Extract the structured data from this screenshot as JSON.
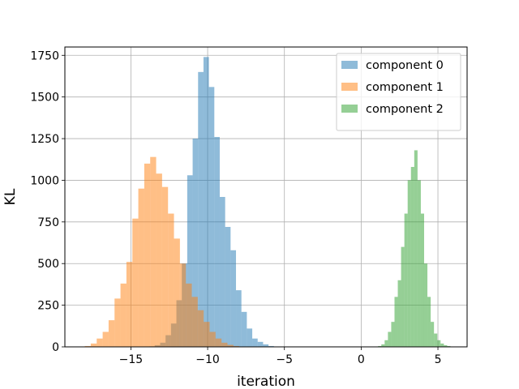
{
  "chart_data": {
    "type": "histogram",
    "title": "",
    "xlabel": "iteration",
    "ylabel": "KL",
    "xlim": [
      -19.3,
      6.9
    ],
    "ylim": [
      0,
      1800
    ],
    "xticks": [
      -15,
      -10,
      -5,
      0,
      5
    ],
    "xtick_labels": [
      "−15",
      "−10",
      "−5",
      "0",
      "5"
    ],
    "yticks": [
      0,
      250,
      500,
      750,
      1000,
      1250,
      1500,
      1750
    ],
    "ytick_labels": [
      "0",
      "250",
      "500",
      "750",
      "1000",
      "1250",
      "1500",
      "1750"
    ],
    "grid": true,
    "legend_position": "top-right",
    "series": [
      {
        "name": "component 0",
        "color": "#1f77b4",
        "opacity": 0.5,
        "bin_start": -13.8,
        "bin_width": 0.3529,
        "counts": [
          3,
          10,
          25,
          70,
          140,
          280,
          500,
          1030,
          1250,
          1650,
          1740,
          1560,
          1260,
          900,
          720,
          580,
          340,
          210,
          110,
          50,
          30,
          15,
          5
        ]
      },
      {
        "name": "component 1",
        "color": "#ff7f0e",
        "opacity": 0.5,
        "bin_start": -18.0,
        "bin_width": 0.3871,
        "counts": [
          5,
          20,
          50,
          90,
          160,
          290,
          380,
          510,
          770,
          950,
          1100,
          1140,
          1040,
          960,
          800,
          650,
          500,
          380,
          300,
          220,
          150,
          90,
          50,
          25,
          12,
          5
        ]
      },
      {
        "name": "component 2",
        "color": "#2ca02c",
        "opacity": 0.5,
        "bin_start": 1.1,
        "bin_width": 0.2143,
        "counts": [
          5,
          15,
          40,
          90,
          150,
          300,
          400,
          600,
          800,
          1000,
          1080,
          1180,
          1000,
          800,
          500,
          300,
          150,
          80,
          40,
          20,
          10,
          5
        ]
      }
    ]
  }
}
